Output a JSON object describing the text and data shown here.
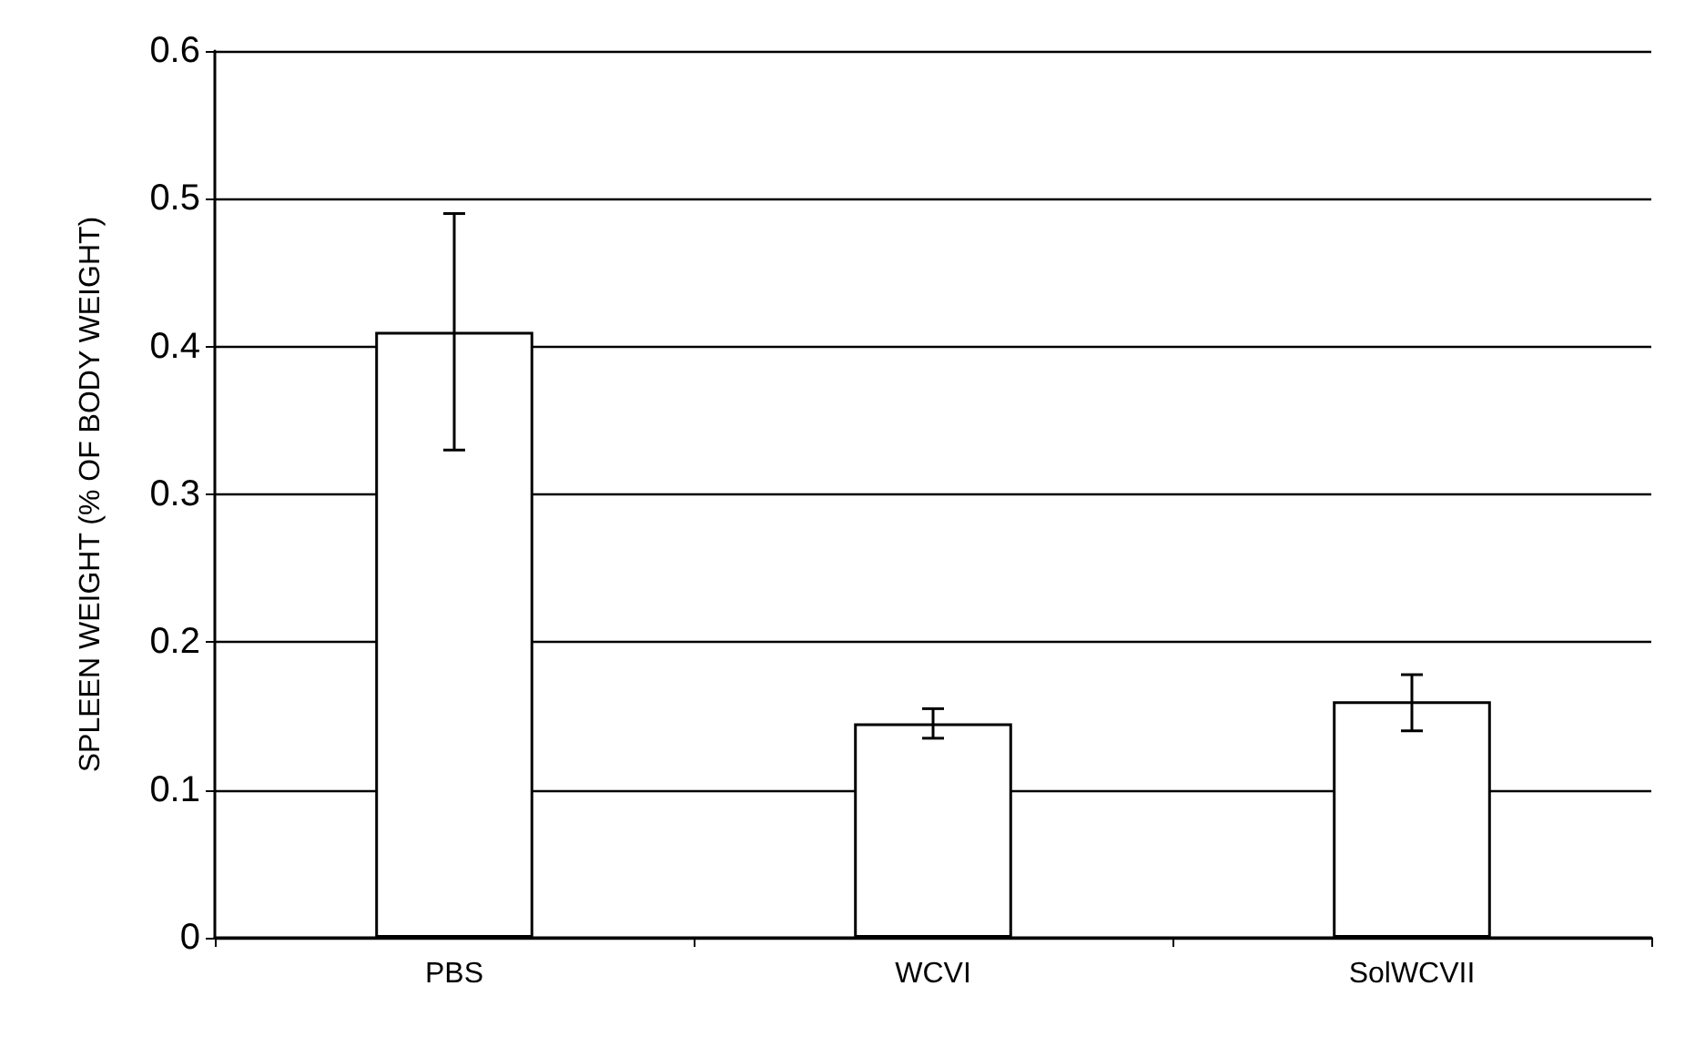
{
  "chart_data": {
    "type": "bar",
    "ylabel": "SPLEEN WEIGHT (% OF BODY WEIGHT)",
    "categories": [
      "PBS",
      "WCVI",
      "SolWCVII"
    ],
    "values": [
      0.41,
      0.145,
      0.16
    ],
    "errors": [
      [
        0.33,
        0.49
      ],
      [
        0.135,
        0.155
      ],
      [
        0.14,
        0.178
      ]
    ],
    "color": "#ffffff",
    "ylim": [
      0,
      0.6
    ],
    "yticks": [
      0,
      0.1,
      0.2,
      0.3,
      0.4,
      0.5,
      0.6
    ],
    "grid": "y"
  }
}
